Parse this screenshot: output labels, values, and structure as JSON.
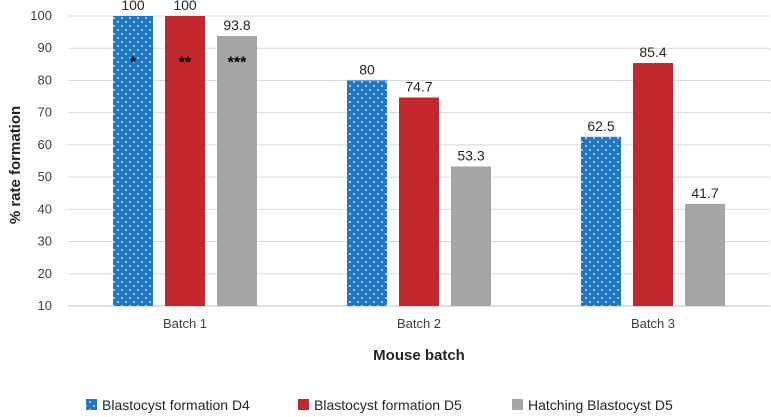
{
  "chart_data": {
    "type": "bar",
    "title": "",
    "xlabel": "Mouse batch",
    "ylabel": "% rate formation",
    "ylim": [
      10,
      100
    ],
    "yticks": [
      10,
      20,
      30,
      40,
      50,
      60,
      70,
      80,
      90,
      100
    ],
    "grid": true,
    "legend_position": "bottom",
    "categories": [
      "Batch 1",
      "Batch 2",
      "Batch 3"
    ],
    "series": [
      {
        "name": "Blastocyst formation D4",
        "color": "#1f77c9",
        "pattern": "dots",
        "values": [
          100,
          80,
          62.5
        ],
        "labels": [
          "100",
          "80",
          "62.5"
        ]
      },
      {
        "name": "Blastocyst formation D5",
        "color": "#c1272d",
        "pattern": "solid",
        "values": [
          100,
          74.7,
          85.4
        ],
        "labels": [
          "100",
          "74.7",
          "85.4"
        ]
      },
      {
        "name": "Hatching Blastocyst D5",
        "color": "#a5a5a5",
        "pattern": "solid",
        "values": [
          93.8,
          53.3,
          41.7
        ],
        "labels": [
          "93.8",
          "53.3",
          "41.7"
        ]
      }
    ],
    "annotations": [
      {
        "category": 0,
        "series": 0,
        "text": "*"
      },
      {
        "category": 0,
        "series": 1,
        "text": "**"
      },
      {
        "category": 0,
        "series": 2,
        "text": "***"
      }
    ]
  }
}
